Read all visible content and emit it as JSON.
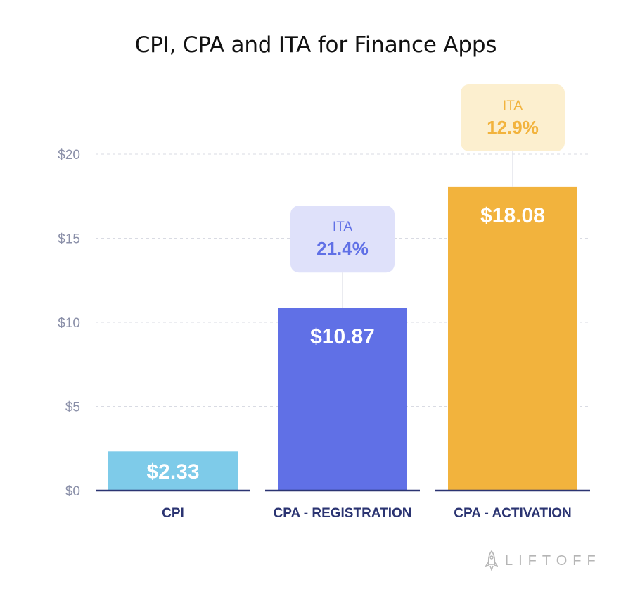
{
  "chart_data": {
    "type": "bar",
    "title": "CPI, CPA and ITA for Finance Apps",
    "categories": [
      "CPI",
      "CPA - REGISTRATION",
      "CPA - ACTIVATION"
    ],
    "values": [
      2.33,
      10.87,
      18.08
    ],
    "value_labels": [
      "$2.33",
      "$10.87",
      "$18.08"
    ],
    "bar_colors": [
      "#7ecbe9",
      "#6070e6",
      "#f2b33d"
    ],
    "ylim": [
      0,
      20
    ],
    "yticks": [
      0,
      5,
      10,
      15,
      20
    ],
    "ytick_labels": [
      "$0",
      "$5",
      "$10",
      "$15",
      "$20"
    ],
    "grid": true,
    "annotations": [
      {
        "category": "CPA - REGISTRATION",
        "label": "ITA",
        "value": "21.4%",
        "box_color": "#dfe1fa",
        "text_color": "#6070e6"
      },
      {
        "category": "CPA - ACTIVATION",
        "label": "ITA",
        "value": "12.9%",
        "box_color": "#fcefcf",
        "text_color": "#f2b33d"
      }
    ]
  },
  "logo": {
    "text": "LIFTOFF",
    "icon": "rocket-icon"
  }
}
